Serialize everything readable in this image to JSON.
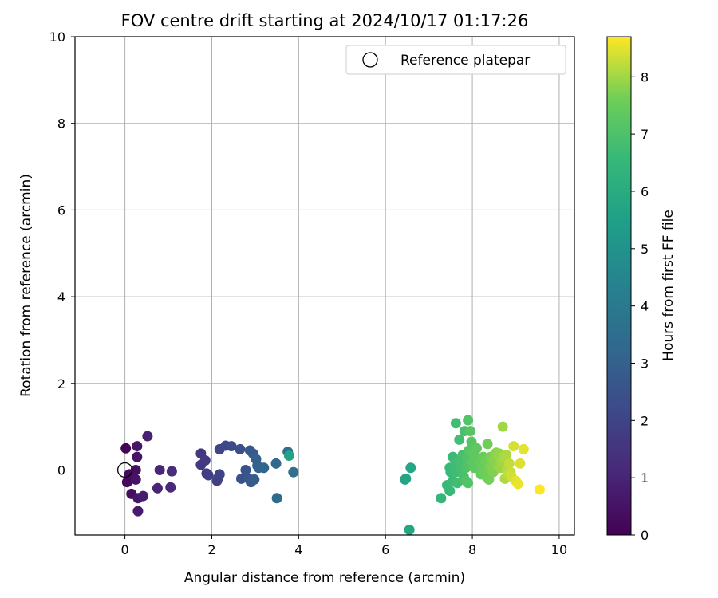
{
  "chart_data": {
    "type": "scatter",
    "title": "FOV centre drift starting at 2024/10/17 01:17:26",
    "xlabel": "Angular distance from reference (arcmin)",
    "ylabel": "Rotation from reference (arcmin)",
    "xlim": [
      -1.15,
      10.35
    ],
    "ylim": [
      -1.5,
      10
    ],
    "xticks": [
      0,
      2,
      4,
      6,
      8,
      10
    ],
    "yticks": [
      0,
      2,
      4,
      6,
      8,
      10
    ],
    "grid": true,
    "legend": {
      "position": "top-right",
      "entries": [
        {
          "label": "Reference platepar",
          "marker": "open-circle"
        }
      ]
    },
    "reference_point": {
      "x": 0,
      "y": 0
    },
    "colorbar": {
      "label": "Hours from first FF file",
      "colormap": "viridis",
      "range": [
        0,
        8.7
      ],
      "ticks": [
        0,
        1,
        2,
        3,
        4,
        5,
        6,
        7,
        8
      ]
    },
    "points": [
      {
        "x": 0.02,
        "y": 0.5,
        "h": 0.1
      },
      {
        "x": 0.05,
        "y": -0.28,
        "h": 0.2
      },
      {
        "x": 0.1,
        "y": -0.1,
        "h": 0.3
      },
      {
        "x": 0.15,
        "y": -0.55,
        "h": 0.35
      },
      {
        "x": 0.25,
        "y": 0.0,
        "h": 0.4
      },
      {
        "x": 0.25,
        "y": -0.22,
        "h": 0.5
      },
      {
        "x": 0.28,
        "y": 0.3,
        "h": 0.55
      },
      {
        "x": 0.28,
        "y": 0.55,
        "h": 0.6
      },
      {
        "x": 0.3,
        "y": -0.65,
        "h": 0.65
      },
      {
        "x": 0.3,
        "y": -0.95,
        "h": 0.7
      },
      {
        "x": 0.42,
        "y": -0.6,
        "h": 0.8
      },
      {
        "x": 0.52,
        "y": 0.78,
        "h": 0.9
      },
      {
        "x": 0.75,
        "y": -0.42,
        "h": 1.0
      },
      {
        "x": 0.8,
        "y": 0.0,
        "h": 1.05
      },
      {
        "x": 1.05,
        "y": -0.4,
        "h": 1.2
      },
      {
        "x": 1.08,
        "y": -0.03,
        "h": 1.25
      },
      {
        "x": 1.75,
        "y": 0.38,
        "h": 1.6
      },
      {
        "x": 1.75,
        "y": 0.12,
        "h": 1.65
      },
      {
        "x": 1.85,
        "y": 0.22,
        "h": 1.7
      },
      {
        "x": 1.88,
        "y": -0.08,
        "h": 1.8
      },
      {
        "x": 1.92,
        "y": -0.12,
        "h": 1.85
      },
      {
        "x": 2.12,
        "y": -0.25,
        "h": 1.9
      },
      {
        "x": 2.15,
        "y": -0.18,
        "h": 1.95
      },
      {
        "x": 2.18,
        "y": -0.1,
        "h": 2.0
      },
      {
        "x": 2.18,
        "y": 0.48,
        "h": 2.05
      },
      {
        "x": 2.32,
        "y": 0.56,
        "h": 2.15
      },
      {
        "x": 2.45,
        "y": 0.55,
        "h": 2.25
      },
      {
        "x": 2.65,
        "y": 0.48,
        "h": 2.4
      },
      {
        "x": 2.68,
        "y": -0.2,
        "h": 2.5
      },
      {
        "x": 2.78,
        "y": 0.0,
        "h": 2.55
      },
      {
        "x": 2.85,
        "y": -0.2,
        "h": 2.65
      },
      {
        "x": 2.88,
        "y": 0.45,
        "h": 2.7
      },
      {
        "x": 2.9,
        "y": -0.28,
        "h": 2.75
      },
      {
        "x": 2.95,
        "y": 0.38,
        "h": 2.8
      },
      {
        "x": 2.98,
        "y": -0.22,
        "h": 2.85
      },
      {
        "x": 3.02,
        "y": 0.25,
        "h": 2.95
      },
      {
        "x": 3.05,
        "y": 0.1,
        "h": 3.0
      },
      {
        "x": 3.08,
        "y": 0.05,
        "h": 3.05
      },
      {
        "x": 3.2,
        "y": 0.05,
        "h": 3.15
      },
      {
        "x": 3.48,
        "y": 0.15,
        "h": 3.3
      },
      {
        "x": 3.5,
        "y": -0.65,
        "h": 3.4
      },
      {
        "x": 3.75,
        "y": 0.42,
        "h": 3.5
      },
      {
        "x": 3.88,
        "y": -0.05,
        "h": 3.6
      },
      {
        "x": 3.78,
        "y": 0.33,
        "h": 5.6
      },
      {
        "x": 6.45,
        "y": -0.22,
        "h": 5.65
      },
      {
        "x": 6.47,
        "y": -0.2,
        "h": 5.7
      },
      {
        "x": 6.55,
        "y": -1.38,
        "h": 5.75
      },
      {
        "x": 6.58,
        "y": 0.05,
        "h": 5.8
      },
      {
        "x": 7.28,
        "y": -0.65,
        "h": 6.5
      },
      {
        "x": 7.42,
        "y": -0.35,
        "h": 6.55
      },
      {
        "x": 7.48,
        "y": -0.48,
        "h": 6.55
      },
      {
        "x": 7.48,
        "y": 0.05,
        "h": 6.6
      },
      {
        "x": 7.5,
        "y": -0.05,
        "h": 6.6
      },
      {
        "x": 7.55,
        "y": -0.25,
        "h": 6.65
      },
      {
        "x": 7.55,
        "y": 0.3,
        "h": 6.65
      },
      {
        "x": 7.6,
        "y": 0.1,
        "h": 6.7
      },
      {
        "x": 7.62,
        "y": -0.05,
        "h": 6.7
      },
      {
        "x": 7.62,
        "y": 1.08,
        "h": 6.75
      },
      {
        "x": 7.65,
        "y": -0.3,
        "h": 6.75
      },
      {
        "x": 7.68,
        "y": 0.2,
        "h": 6.8
      },
      {
        "x": 7.7,
        "y": 0.7,
        "h": 6.8
      },
      {
        "x": 7.72,
        "y": 0.0,
        "h": 6.85
      },
      {
        "x": 7.75,
        "y": 0.15,
        "h": 6.85
      },
      {
        "x": 7.78,
        "y": 0.35,
        "h": 6.9
      },
      {
        "x": 7.8,
        "y": -0.15,
        "h": 6.95
      },
      {
        "x": 7.82,
        "y": 0.9,
        "h": 6.95
      },
      {
        "x": 7.85,
        "y": 0.05,
        "h": 7.0
      },
      {
        "x": 7.85,
        "y": -0.25,
        "h": 7.05
      },
      {
        "x": 7.88,
        "y": 0.25,
        "h": 7.05
      },
      {
        "x": 7.9,
        "y": -0.3,
        "h": 7.1
      },
      {
        "x": 7.9,
        "y": 1.15,
        "h": 7.1
      },
      {
        "x": 7.92,
        "y": 0.45,
        "h": 7.15
      },
      {
        "x": 7.95,
        "y": 0.1,
        "h": 7.15
      },
      {
        "x": 7.95,
        "y": 0.9,
        "h": 7.2
      },
      {
        "x": 7.98,
        "y": 0.65,
        "h": 7.2
      },
      {
        "x": 8.0,
        "y": 0.2,
        "h": 7.25
      },
      {
        "x": 8.02,
        "y": 0.4,
        "h": 7.3
      },
      {
        "x": 8.05,
        "y": 0.05,
        "h": 7.3
      },
      {
        "x": 8.08,
        "y": 0.3,
        "h": 7.35
      },
      {
        "x": 8.1,
        "y": 0.5,
        "h": 7.35
      },
      {
        "x": 8.15,
        "y": 0.2,
        "h": 7.4
      },
      {
        "x": 8.2,
        "y": -0.1,
        "h": 7.45
      },
      {
        "x": 8.22,
        "y": 0.05,
        "h": 7.45
      },
      {
        "x": 8.25,
        "y": 0.3,
        "h": 7.5
      },
      {
        "x": 8.28,
        "y": -0.05,
        "h": 7.55
      },
      {
        "x": 8.3,
        "y": 0.2,
        "h": 7.55
      },
      {
        "x": 8.32,
        "y": -0.15,
        "h": 7.6
      },
      {
        "x": 8.35,
        "y": 0.6,
        "h": 7.6
      },
      {
        "x": 8.38,
        "y": -0.22,
        "h": 7.65
      },
      {
        "x": 8.4,
        "y": 0.05,
        "h": 7.7
      },
      {
        "x": 8.42,
        "y": 0.3,
        "h": 7.7
      },
      {
        "x": 8.45,
        "y": 0.15,
        "h": 7.75
      },
      {
        "x": 8.48,
        "y": -0.05,
        "h": 7.75
      },
      {
        "x": 8.5,
        "y": 0.25,
        "h": 7.8
      },
      {
        "x": 8.55,
        "y": 0.4,
        "h": 7.85
      },
      {
        "x": 8.58,
        "y": 0.1,
        "h": 7.85
      },
      {
        "x": 8.6,
        "y": 0.3,
        "h": 7.9
      },
      {
        "x": 8.62,
        "y": 0.38,
        "h": 7.9
      },
      {
        "x": 8.65,
        "y": 0.05,
        "h": 7.95
      },
      {
        "x": 8.68,
        "y": 0.2,
        "h": 8.0
      },
      {
        "x": 8.7,
        "y": 1.0,
        "h": 8.0
      },
      {
        "x": 8.72,
        "y": 0.3,
        "h": 8.05
      },
      {
        "x": 8.75,
        "y": -0.2,
        "h": 8.1
      },
      {
        "x": 8.78,
        "y": 0.35,
        "h": 8.1
      },
      {
        "x": 8.8,
        "y": 0.0,
        "h": 8.15
      },
      {
        "x": 8.82,
        "y": -0.1,
        "h": 8.2
      },
      {
        "x": 8.85,
        "y": 0.15,
        "h": 8.25
      },
      {
        "x": 8.88,
        "y": -0.05,
        "h": 8.3
      },
      {
        "x": 8.9,
        "y": -0.15,
        "h": 8.35
      },
      {
        "x": 8.95,
        "y": 0.55,
        "h": 8.4
      },
      {
        "x": 9.0,
        "y": -0.25,
        "h": 8.5
      },
      {
        "x": 9.05,
        "y": -0.32,
        "h": 8.55
      },
      {
        "x": 9.1,
        "y": 0.15,
        "h": 8.45
      },
      {
        "x": 9.18,
        "y": 0.48,
        "h": 8.5
      },
      {
        "x": 9.55,
        "y": -0.45,
        "h": 8.7
      }
    ]
  }
}
